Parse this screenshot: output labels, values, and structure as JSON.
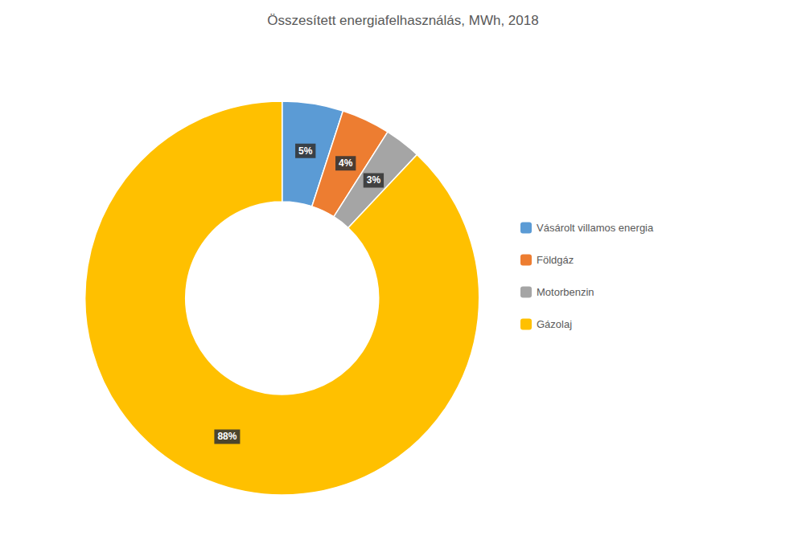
{
  "chart_data": {
    "type": "pie",
    "title": "Összesített energiafelhasználás, MWh, 2018",
    "categories": [
      "Vásárolt villamos energia",
      "Földgáz",
      "Motorbenzin",
      "Gázolaj"
    ],
    "values": [
      5,
      4,
      3,
      88
    ],
    "value_labels": [
      "5%",
      "4%",
      "3%",
      "88%"
    ],
    "colors": [
      "#5B9BD5",
      "#ED7D31",
      "#A5A5A5",
      "#FFC000"
    ],
    "data_labels": true,
    "legend": "right"
  }
}
